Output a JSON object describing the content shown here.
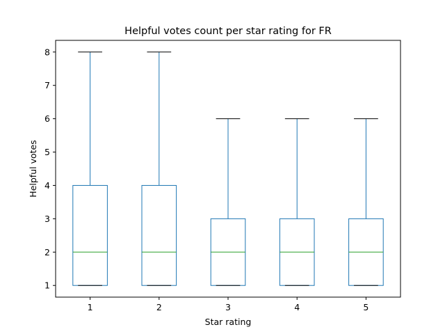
{
  "chart_data": {
    "type": "box",
    "title": "Helpful votes count per star rating for FR",
    "xlabel": "Star rating",
    "ylabel": "Helpful votes",
    "categories": [
      "1",
      "2",
      "3",
      "4",
      "5"
    ],
    "boxes": [
      {
        "whislo": 1,
        "q1": 1,
        "med": 2,
        "q3": 4,
        "whishi": 8
      },
      {
        "whislo": 1,
        "q1": 1,
        "med": 2,
        "q3": 4,
        "whishi": 8
      },
      {
        "whislo": 1,
        "q1": 1,
        "med": 2,
        "q3": 3,
        "whishi": 6
      },
      {
        "whislo": 1,
        "q1": 1,
        "med": 2,
        "q3": 3,
        "whishi": 6
      },
      {
        "whislo": 1,
        "q1": 1,
        "med": 2,
        "q3": 3,
        "whishi": 6
      }
    ],
    "yticks": [
      1,
      2,
      3,
      4,
      5,
      6,
      7,
      8
    ],
    "ylim": [
      0.65,
      8.35
    ],
    "grid": false,
    "colors": {
      "box": "#1f77b4",
      "median": "#2ca02c",
      "cap": "#000000",
      "axes": "#000000"
    }
  }
}
